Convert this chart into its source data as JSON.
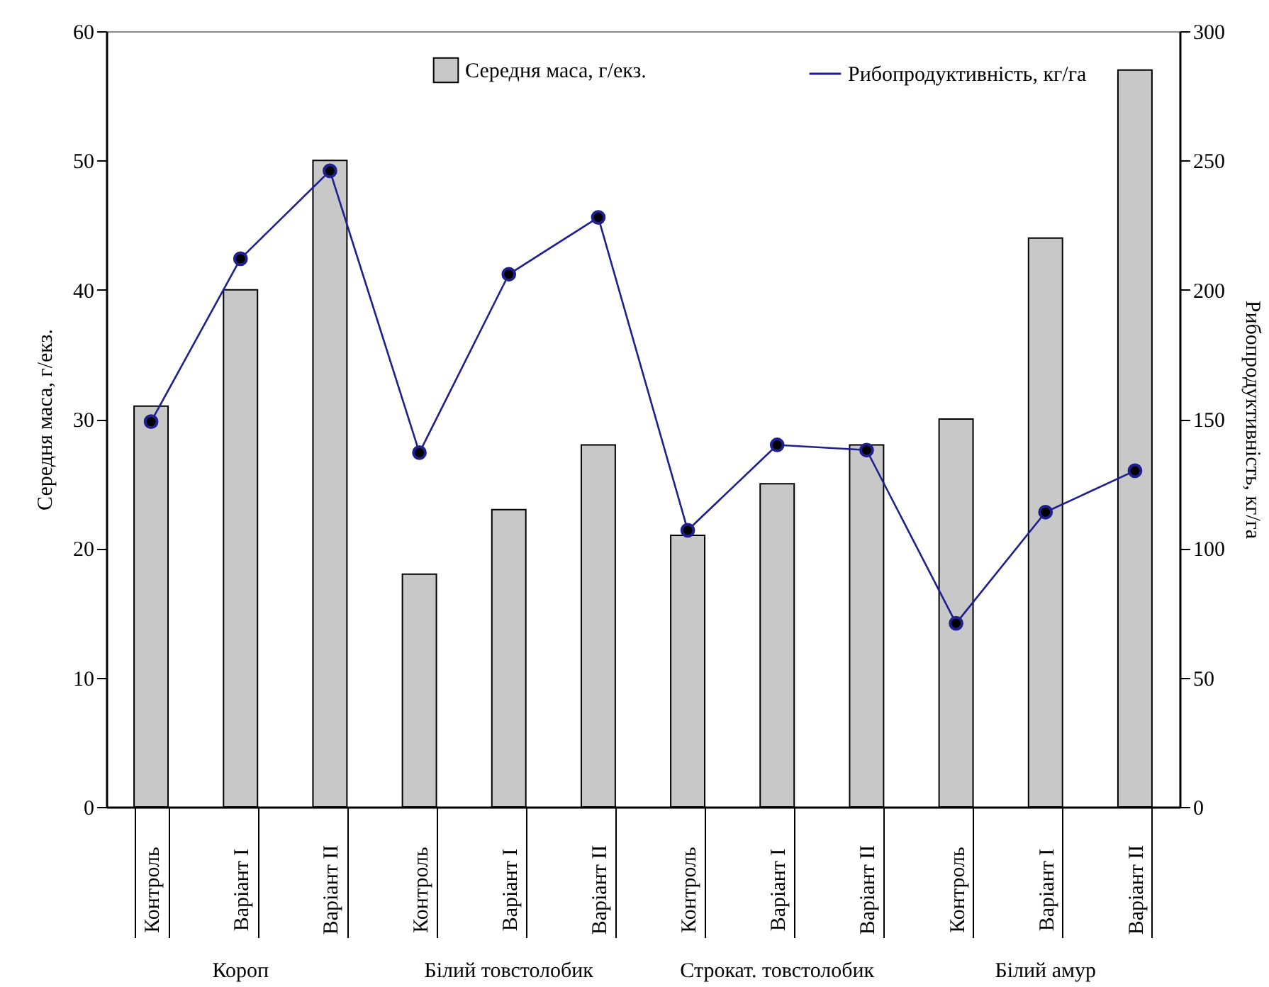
{
  "chart_data": {
    "type": "bar",
    "categories": [
      "Контроль",
      "Варіант І",
      "Варіант ІІ",
      "Контроль",
      "Варіант І",
      "Варіант ІІ",
      "Контроль",
      "Варіант І",
      "Варіант ІІ",
      "Контроль",
      "Варіант І",
      "Варіант ІІ"
    ],
    "series": [
      {
        "name": "Середня маса, г/екз.",
        "color": "#c8c8c8",
        "values": [
          31,
          40,
          50,
          18,
          23,
          28,
          21,
          25,
          28,
          30,
          44,
          57
        ]
      },
      {
        "name": "Рибопродуктивність, кг/га",
        "type": "line",
        "axis": "y2",
        "color": "#1f1f8f",
        "values": [
          149,
          212,
          246,
          137,
          206,
          228,
          107,
          140,
          138,
          71,
          114,
          130
        ]
      }
    ],
    "ylabel": "Середня маса, г/екз.",
    "y2label": "Рибопродуктивність, кг/га",
    "ylim": [
      0,
      60
    ],
    "yticks": [
      0,
      10,
      20,
      30,
      40,
      50,
      60
    ],
    "y2lim": [
      0,
      300
    ],
    "y2ticks": [
      0,
      50,
      100,
      150,
      200,
      250,
      300
    ],
    "annotations": [
      "Короп",
      "Білий товстолобик",
      "Строкат. товстолобик",
      "Білий амур"
    ],
    "marker": "circle",
    "grid": false,
    "legend": "top"
  }
}
